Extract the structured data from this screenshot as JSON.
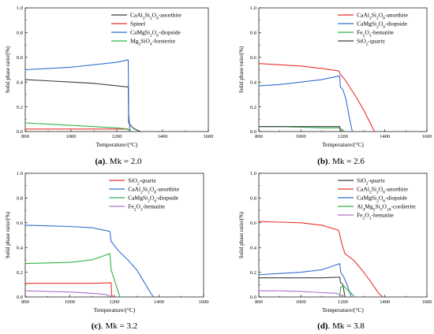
{
  "chart_data": [
    {
      "type": "line",
      "caption": "(a). Mk = 2.0",
      "xlabel": "Temperature/(°C)",
      "ylabel": "Solid phase ratio/(%)",
      "xlim": [
        800,
        1600
      ],
      "ylim": [
        0,
        1.0
      ],
      "xticks": [
        "800",
        "1000",
        "1200",
        "1400",
        "1600"
      ],
      "yticks": [
        "0.0",
        "0.2",
        "0.4",
        "0.6",
        "0.8",
        "1.0"
      ],
      "legend_position": "top-right",
      "series": [
        {
          "name": "CaAl₂Si₂O₈-anorthite",
          "color": "#3c3c3c",
          "points": [
            [
              800,
              0.42
            ],
            [
              900,
              0.41
            ],
            [
              1000,
              0.4
            ],
            [
              1100,
              0.39
            ],
            [
              1200,
              0.37
            ],
            [
              1250,
              0.36
            ],
            [
              1252,
              0.07
            ],
            [
              1270,
              0.03
            ],
            [
              1300,
              0.0
            ]
          ]
        },
        {
          "name": "Spinel",
          "color": "#e8322e",
          "points": [
            [
              800,
              0.02
            ],
            [
              1000,
              0.02
            ],
            [
              1200,
              0.02
            ],
            [
              1245,
              0.02
            ],
            [
              1265,
              0.0
            ]
          ]
        },
        {
          "name": "CaMgSi₂O₆-diopside",
          "color": "#2f6fd0",
          "points": [
            [
              800,
              0.5
            ],
            [
              900,
              0.51
            ],
            [
              1000,
              0.52
            ],
            [
              1100,
              0.54
            ],
            [
              1200,
              0.56
            ],
            [
              1250,
              0.58
            ],
            [
              1252,
              0.14
            ],
            [
              1258,
              0.0
            ]
          ]
        },
        {
          "name": "Mg₂SiO₄-forsterite",
          "color": "#2fb44a",
          "points": [
            [
              800,
              0.07
            ],
            [
              900,
              0.06
            ],
            [
              1000,
              0.05
            ],
            [
              1100,
              0.04
            ],
            [
              1200,
              0.03
            ],
            [
              1250,
              0.02
            ],
            [
              1262,
              0.0
            ]
          ]
        }
      ]
    },
    {
      "type": "line",
      "caption": "(b). Mk = 2.6",
      "xlabel": "Temperature/(°C)",
      "ylabel": "Solid phase ratio/(%)",
      "xlim": [
        800,
        1600
      ],
      "ylim": [
        0,
        1.0
      ],
      "xticks": [
        "800",
        "1000",
        "1200",
        "1400",
        "1600"
      ],
      "yticks": [
        "0.0",
        "0.2",
        "0.4",
        "0.6",
        "0.8",
        "1.0"
      ],
      "legend_position": "top-right",
      "series": [
        {
          "name": "CaAl₂Si₂O₈-anorthite",
          "color": "#e8322e",
          "points": [
            [
              800,
              0.55
            ],
            [
              900,
              0.54
            ],
            [
              1000,
              0.53
            ],
            [
              1100,
              0.51
            ],
            [
              1180,
              0.49
            ],
            [
              1190,
              0.46
            ],
            [
              1210,
              0.42
            ],
            [
              1240,
              0.34
            ],
            [
              1270,
              0.26
            ],
            [
              1300,
              0.17
            ],
            [
              1330,
              0.07
            ],
            [
              1350,
              0.0
            ]
          ]
        },
        {
          "name": "CaMgSi₂O₆-diopside",
          "color": "#2f6fd0",
          "points": [
            [
              800,
              0.37
            ],
            [
              900,
              0.38
            ],
            [
              1000,
              0.4
            ],
            [
              1100,
              0.42
            ],
            [
              1185,
              0.45
            ],
            [
              1188,
              0.36
            ],
            [
              1200,
              0.34
            ],
            [
              1215,
              0.26
            ],
            [
              1230,
              0.12
            ],
            [
              1245,
              0.0
            ]
          ]
        },
        {
          "name": "Fe₂O₃-hematite",
          "color": "#2fb44a",
          "points": [
            [
              800,
              0.04
            ],
            [
              900,
              0.04
            ],
            [
              1000,
              0.035
            ],
            [
              1100,
              0.03
            ],
            [
              1185,
              0.03
            ],
            [
              1205,
              0.0
            ]
          ]
        },
        {
          "name": "SiO₂-quartz",
          "color": "#3c3c3c",
          "points": [
            [
              800,
              0.04
            ],
            [
              1000,
              0.04
            ],
            [
              1100,
              0.04
            ],
            [
              1185,
              0.04
            ],
            [
              1187,
              0.01
            ],
            [
              1195,
              0.0
            ]
          ]
        }
      ]
    },
    {
      "type": "line",
      "caption": "(c). Mk = 3.2",
      "xlabel": "Temperature/(°C)",
      "ylabel": "Solid phase ratio/(%)",
      "xlim": [
        800,
        1600
      ],
      "ylim": [
        0,
        1.0
      ],
      "xticks": [
        "800",
        "1000",
        "1200",
        "1400",
        "1600"
      ],
      "yticks": [
        "0.0",
        "0.2",
        "0.4",
        "0.6",
        "0.8",
        "1.0"
      ],
      "legend_position": "top-right",
      "series": [
        {
          "name": "SiO₂-quartz",
          "color": "#e8322e",
          "points": [
            [
              800,
              0.11
            ],
            [
              1000,
              0.11
            ],
            [
              1100,
              0.11
            ],
            [
              1185,
              0.115
            ],
            [
              1188,
              0.01
            ],
            [
              1200,
              0.0
            ]
          ]
        },
        {
          "name": "CaAl₂Si₂O₈-anorthite",
          "color": "#2f6fd0",
          "points": [
            [
              800,
              0.58
            ],
            [
              900,
              0.575
            ],
            [
              1000,
              0.57
            ],
            [
              1100,
              0.56
            ],
            [
              1180,
              0.53
            ],
            [
              1185,
              0.45
            ],
            [
              1220,
              0.37
            ],
            [
              1260,
              0.3
            ],
            [
              1300,
              0.22
            ],
            [
              1330,
              0.13
            ],
            [
              1360,
              0.04
            ],
            [
              1375,
              0.0
            ]
          ]
        },
        {
          "name": "CaMgSi₂O₆-diopside",
          "color": "#2fb44a",
          "points": [
            [
              800,
              0.27
            ],
            [
              900,
              0.275
            ],
            [
              1000,
              0.28
            ],
            [
              1100,
              0.3
            ],
            [
              1180,
              0.35
            ],
            [
              1185,
              0.22
            ],
            [
              1200,
              0.14
            ],
            [
              1215,
              0.05
            ],
            [
              1225,
              0.0
            ]
          ]
        },
        {
          "name": "Fe₂O₃-hematite",
          "color": "#b070c8",
          "points": [
            [
              800,
              0.05
            ],
            [
              900,
              0.045
            ],
            [
              1000,
              0.04
            ],
            [
              1100,
              0.03
            ],
            [
              1160,
              0.02
            ],
            [
              1195,
              0.0
            ]
          ]
        }
      ]
    },
    {
      "type": "line",
      "caption": "(d). Mk = 3.8",
      "xlabel": "Temperature/(°C)",
      "ylabel": "Solid phase ratio/(%)",
      "xlim": [
        800,
        1600
      ],
      "ylim": [
        0,
        1.0
      ],
      "xticks": [
        "800",
        "1000",
        "1200",
        "1400",
        "1600"
      ],
      "yticks": [
        "0.0",
        "0.2",
        "0.4",
        "0.6",
        "0.8",
        "1.0"
      ],
      "legend_position": "top-right",
      "series": [
        {
          "name": "SiO₂-quartz",
          "color": "#3c3c3c",
          "points": [
            [
              800,
              0.155
            ],
            [
              1000,
              0.155
            ],
            [
              1100,
              0.155
            ],
            [
              1185,
              0.16
            ],
            [
              1188,
              0.12
            ],
            [
              1200,
              0.1
            ],
            [
              1210,
              0.0
            ]
          ]
        },
        {
          "name": "CaAl₂Si₂O₈-anorthite",
          "color": "#e8322e",
          "points": [
            [
              800,
              0.61
            ],
            [
              900,
              0.605
            ],
            [
              1000,
              0.6
            ],
            [
              1100,
              0.58
            ],
            [
              1180,
              0.54
            ],
            [
              1195,
              0.43
            ],
            [
              1210,
              0.35
            ],
            [
              1250,
              0.3
            ],
            [
              1290,
              0.22
            ],
            [
              1330,
              0.13
            ],
            [
              1370,
              0.03
            ],
            [
              1390,
              0.0
            ]
          ]
        },
        {
          "name": "CaMgSi₂O₆-diopside",
          "color": "#2f6fd0",
          "points": [
            [
              800,
              0.18
            ],
            [
              900,
              0.19
            ],
            [
              1000,
              0.2
            ],
            [
              1100,
              0.22
            ],
            [
              1185,
              0.27
            ],
            [
              1190,
              0.2
            ],
            [
              1205,
              0.16
            ],
            [
              1220,
              0.1
            ],
            [
              1230,
              0.05
            ],
            [
              1240,
              0.0
            ]
          ]
        },
        {
          "name": "Al₄Mg₂Si₅O₁₈-cordierite",
          "color": "#2fb44a",
          "points": [
            [
              1185,
              0.0
            ],
            [
              1190,
              0.08
            ],
            [
              1205,
              0.09
            ],
            [
              1220,
              0.06
            ],
            [
              1240,
              0.03
            ],
            [
              1255,
              0.0
            ]
          ]
        },
        {
          "name": "Fe₂O₃-hematite",
          "color": "#b070c8",
          "points": [
            [
              800,
              0.05
            ],
            [
              900,
              0.05
            ],
            [
              1000,
              0.045
            ],
            [
              1100,
              0.035
            ],
            [
              1170,
              0.03
            ],
            [
              1205,
              0.0
            ]
          ]
        }
      ]
    }
  ]
}
